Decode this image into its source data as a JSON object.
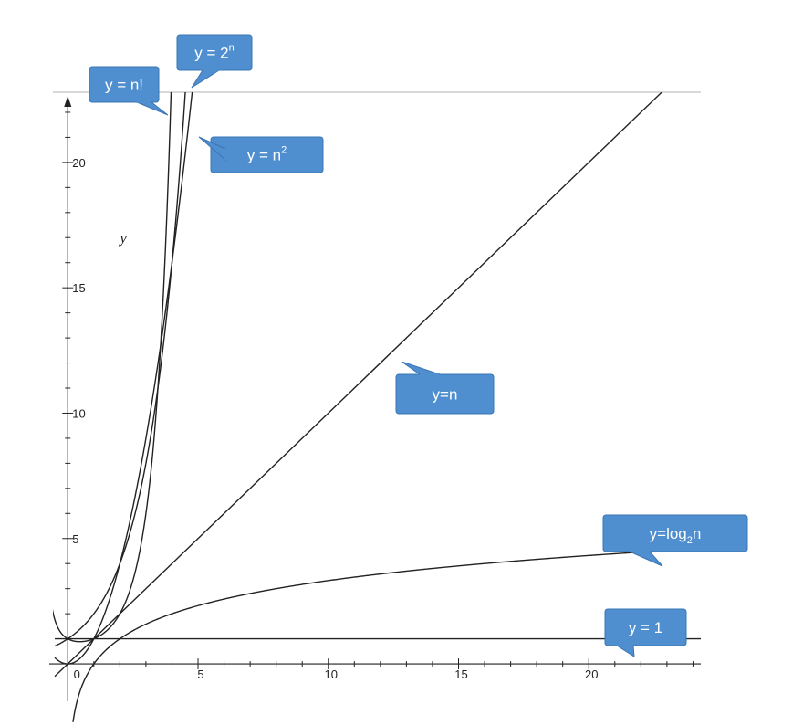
{
  "chart_data": {
    "type": "line",
    "xlim": [
      -0.5,
      24.3
    ],
    "ylim": [
      -1.2,
      22.8
    ],
    "ylabel": "y",
    "x_ticks": [
      5,
      10,
      15,
      20
    ],
    "y_ticks": [
      5,
      10,
      15,
      20
    ],
    "grid": false,
    "series": [
      {
        "name": "y = n!",
        "expr": "n!"
      },
      {
        "name": "y = 2^n",
        "expr": "2^n"
      },
      {
        "name": "y = n^2",
        "expr": "n^2"
      },
      {
        "name": "y=n",
        "expr": "n"
      },
      {
        "name": "y=log2n",
        "expr": "log2(n)"
      },
      {
        "name": "y = 1",
        "expr": "1"
      }
    ],
    "annotations": [
      {
        "id": "factorial",
        "base": "y = n!",
        "sup": "",
        "sub": "",
        "tail": ""
      },
      {
        "id": "exp2",
        "base": "y = 2",
        "sup": "n",
        "sub": "",
        "tail": ""
      },
      {
        "id": "square",
        "base": "y = n",
        "sup": "2",
        "sub": "",
        "tail": ""
      },
      {
        "id": "linear",
        "base": "y=n",
        "sup": "",
        "sub": "",
        "tail": ""
      },
      {
        "id": "log",
        "base": "y=log",
        "sup": "",
        "sub": "2",
        "tail": "n"
      },
      {
        "id": "const",
        "base": "y = 1",
        "sup": "",
        "sub": "",
        "tail": ""
      }
    ]
  },
  "colors": {
    "curve": "#222222",
    "callout_fill": "#4f8fd0",
    "callout_stroke": "#3a74b3",
    "callout_text": "#ffffff"
  }
}
